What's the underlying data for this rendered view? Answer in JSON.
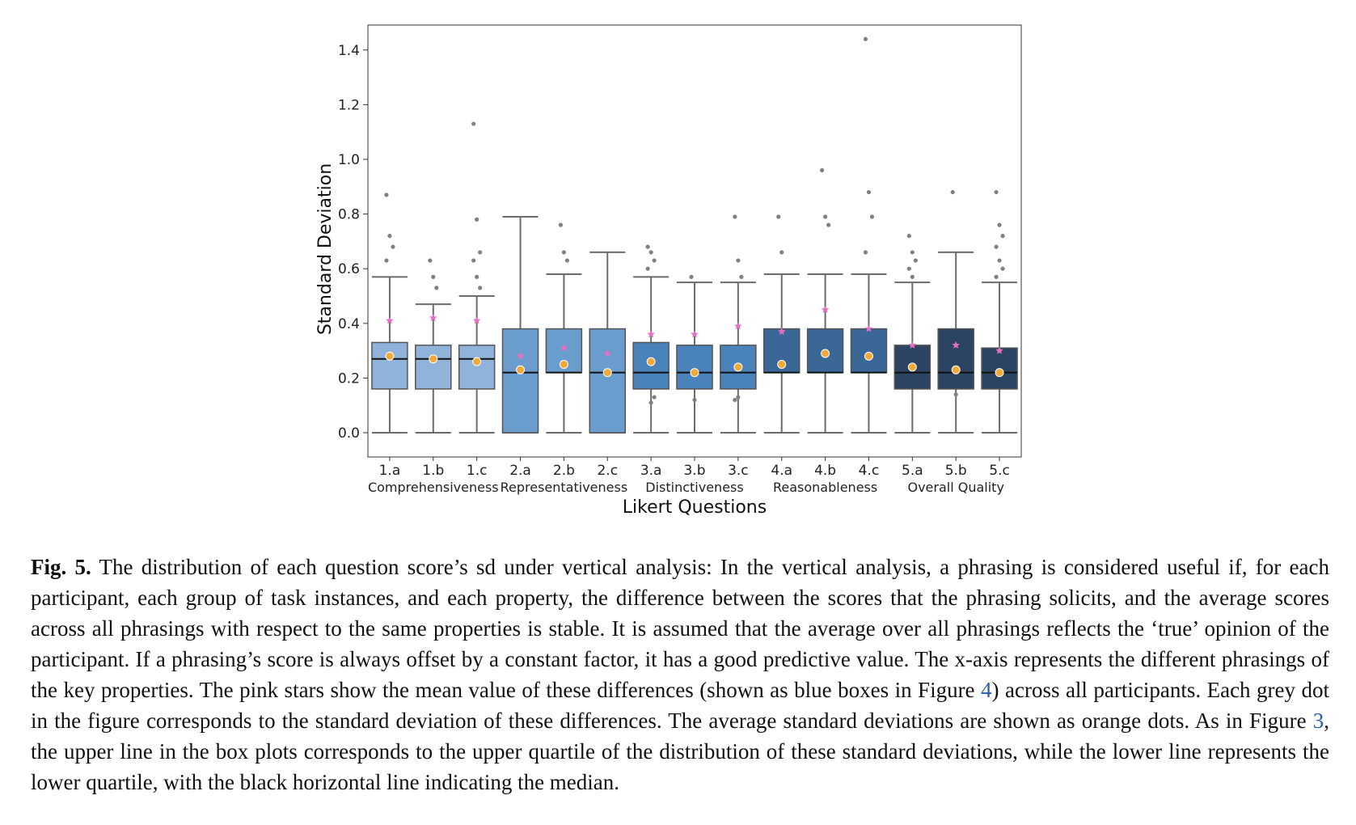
{
  "chart_data": {
    "type": "box",
    "xlabel": "Likert Questions",
    "ylabel": "Standard Deviation",
    "ylim": [
      -0.08,
      1.49
    ],
    "yticks": [
      "0.0",
      "0.2",
      "0.4",
      "0.6",
      "0.8",
      "1.0",
      "1.2",
      "1.4"
    ],
    "categories": [
      "1.a",
      "1.b",
      "1.c",
      "2.a",
      "2.b",
      "2.c",
      "3.a",
      "3.b",
      "3.c",
      "4.a",
      "4.b",
      "4.c",
      "5.a",
      "5.b",
      "5.c"
    ],
    "groups": [
      {
        "label": "Comprehensiveness",
        "color": "#8fb3d9"
      },
      {
        "label": "Representativeness",
        "color": "#6a9ccd"
      },
      {
        "label": "Distinctiveness",
        "color": "#4a82bb"
      },
      {
        "label": "Reasonableness",
        "color": "#3a6796"
      },
      {
        "label": "Overall Quality",
        "color": "#2b4461"
      }
    ],
    "boxes": [
      {
        "q1": 0.16,
        "median": 0.27,
        "q3": 0.33,
        "wlo": 0.0,
        "whi": 0.57,
        "mean_sd": 0.28,
        "mean_diff": 0.41,
        "outliers": [
          0.87,
          0.72,
          0.68,
          0.63
        ]
      },
      {
        "q1": 0.16,
        "median": 0.27,
        "q3": 0.32,
        "wlo": 0.0,
        "whi": 0.47,
        "mean_sd": 0.27,
        "mean_diff": 0.42,
        "outliers": [
          0.63,
          0.57,
          0.53
        ]
      },
      {
        "q1": 0.16,
        "median": 0.27,
        "q3": 0.32,
        "wlo": 0.0,
        "whi": 0.5,
        "mean_sd": 0.26,
        "mean_diff": 0.41,
        "outliers": [
          1.13,
          0.78,
          0.66,
          0.63,
          0.57,
          0.53
        ]
      },
      {
        "q1": 0.0,
        "median": 0.22,
        "q3": 0.38,
        "wlo": 0.0,
        "whi": 0.79,
        "mean_sd": 0.23,
        "mean_diff": 0.28,
        "outliers": []
      },
      {
        "q1": 0.22,
        "median": 0.22,
        "q3": 0.38,
        "wlo": 0.0,
        "whi": 0.58,
        "mean_sd": 0.25,
        "mean_diff": 0.31,
        "outliers": [
          0.76,
          0.66,
          0.63
        ]
      },
      {
        "q1": 0.0,
        "median": 0.22,
        "q3": 0.38,
        "wlo": 0.0,
        "whi": 0.66,
        "mean_sd": 0.22,
        "mean_diff": 0.29,
        "outliers": []
      },
      {
        "q1": 0.16,
        "median": 0.22,
        "q3": 0.33,
        "wlo": 0.0,
        "whi": 0.57,
        "mean_sd": 0.26,
        "mean_diff": 0.36,
        "outliers": [
          0.68,
          0.66,
          0.63,
          0.6,
          0.11,
          0.13
        ]
      },
      {
        "q1": 0.16,
        "median": 0.22,
        "q3": 0.32,
        "wlo": 0.0,
        "whi": 0.55,
        "mean_sd": 0.22,
        "mean_diff": 0.36,
        "outliers": [
          0.57,
          0.12
        ]
      },
      {
        "q1": 0.16,
        "median": 0.22,
        "q3": 0.32,
        "wlo": 0.0,
        "whi": 0.55,
        "mean_sd": 0.24,
        "mean_diff": 0.39,
        "outliers": [
          0.79,
          0.63,
          0.57,
          0.12,
          0.13
        ]
      },
      {
        "q1": 0.22,
        "median": 0.22,
        "q3": 0.38,
        "wlo": 0.0,
        "whi": 0.58,
        "mean_sd": 0.25,
        "mean_diff": 0.37,
        "outliers": [
          0.79,
          0.66
        ]
      },
      {
        "q1": 0.22,
        "median": 0.22,
        "q3": 0.38,
        "wlo": 0.0,
        "whi": 0.58,
        "mean_sd": 0.29,
        "mean_diff": 0.45,
        "outliers": [
          0.96,
          0.79,
          0.76
        ]
      },
      {
        "q1": 0.22,
        "median": 0.22,
        "q3": 0.38,
        "wlo": 0.0,
        "whi": 0.58,
        "mean_sd": 0.28,
        "mean_diff": 0.38,
        "outliers": [
          1.44,
          0.88,
          0.79,
          0.66
        ]
      },
      {
        "q1": 0.16,
        "median": 0.22,
        "q3": 0.32,
        "wlo": 0.0,
        "whi": 0.55,
        "mean_sd": 0.24,
        "mean_diff": 0.32,
        "outliers": [
          0.72,
          0.66,
          0.63,
          0.6,
          0.57
        ]
      },
      {
        "q1": 0.16,
        "median": 0.22,
        "q3": 0.38,
        "wlo": 0.0,
        "whi": 0.66,
        "mean_sd": 0.23,
        "mean_diff": 0.32,
        "outliers": [
          0.88,
          0.14
        ]
      },
      {
        "q1": 0.16,
        "median": 0.22,
        "q3": 0.31,
        "wlo": 0.0,
        "whi": 0.55,
        "mean_sd": 0.22,
        "mean_diff": 0.3,
        "outliers": [
          0.88,
          0.76,
          0.72,
          0.68,
          0.63,
          0.6,
          0.57
        ]
      }
    ],
    "mean_sd_color": "#f2a93b",
    "mean_diff_color": "#e66fc4",
    "outlier_color": "#808080",
    "grid": false
  },
  "caption": {
    "label": "Fig. 5.",
    "part1": " The distribution of each question score’s sd under vertical analysis: In the vertical analysis, a phrasing is considered useful if, for each participant, each group of task instances, and each property, the difference between the scores that the phrasing solicits, and the average scores across all phrasings with respect to the same properties is stable. It is assumed that the average over all phrasings reflects the ‘true’ opinion of the participant. If a phrasing’s score is always offset by a constant factor, it has a good predictive value. The x-axis represents the different phrasings of the key properties. The pink stars show the mean value of these differences (shown as blue boxes in Figure ",
    "ref1": "4",
    "part2": ") across all participants. Each grey dot in the figure corresponds to the standard deviation of these differences. The average standard deviations are shown as orange dots. As in Figure ",
    "ref2": "3",
    "part3": ", the upper line in the box plots corresponds to the upper quartile of the distribution of these standard deviations, while the lower line represents the lower quartile, with the black horizontal line indicating the median."
  }
}
